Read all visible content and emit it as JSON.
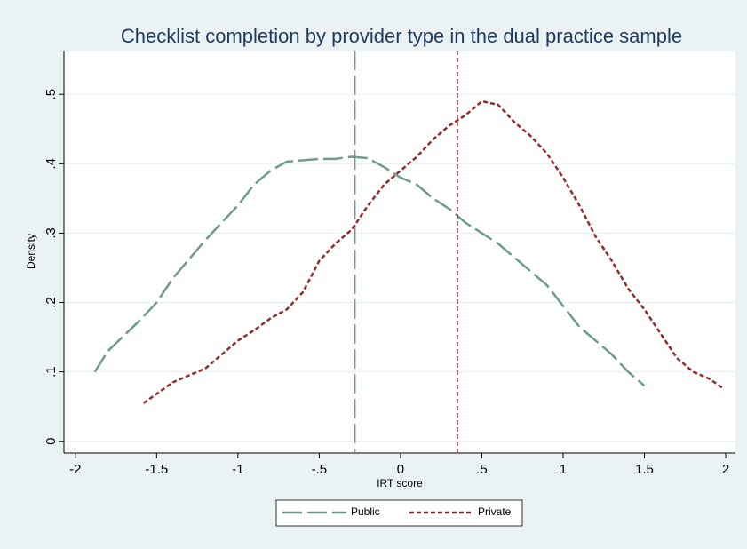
{
  "chart_data": {
    "type": "line",
    "title": "Checklist completion by provider type in the dual practice sample",
    "x_label": "IRT score",
    "y_label": "Density",
    "xlim": [
      -2.07,
      2.06
    ],
    "ylim": [
      -0.017,
      0.563
    ],
    "xticks": [
      -2,
      -1.5,
      -1,
      {
        "value": -0.5,
        "label": "-.5"
      },
      0,
      {
        "value": 0.5,
        "label": ".5"
      },
      1,
      1.5,
      2
    ],
    "yticks": [
      0,
      {
        "value": 0.1,
        "label": ".1"
      },
      {
        "value": 0.2,
        "label": ".2"
      },
      {
        "value": 0.3,
        "label": ".3"
      },
      {
        "value": 0.4,
        "label": ".4"
      },
      {
        "value": 0.5,
        "label": ".5"
      }
    ],
    "grid": true,
    "legend": "bottom",
    "series": [
      {
        "name": "Public",
        "color": "#6f9c90",
        "line_style": "long-dash",
        "mean": -0.28,
        "x": [
          -1.88,
          -1.8,
          -1.6,
          -1.5,
          -1.4,
          -1.2,
          -1.0,
          -0.9,
          -0.8,
          -0.7,
          -0.5,
          -0.4,
          -0.3,
          -0.2,
          -0.1,
          0,
          0.1,
          0.2,
          0.3,
          0.4,
          0.5,
          0.6,
          0.7,
          0.8,
          0.9,
          1.0,
          1.1,
          1.2,
          1.3,
          1.4,
          1.5
        ],
        "values": [
          0.1,
          0.13,
          0.175,
          0.2,
          0.235,
          0.29,
          0.34,
          0.37,
          0.39,
          0.403,
          0.407,
          0.407,
          0.41,
          0.408,
          0.395,
          0.38,
          0.37,
          0.35,
          0.335,
          0.315,
          0.3,
          0.285,
          0.265,
          0.245,
          0.225,
          0.195,
          0.165,
          0.145,
          0.125,
          0.1,
          0.08
        ]
      },
      {
        "name": "Private",
        "color": "#962a2a",
        "line_style": "short-dash",
        "mean": 0.35,
        "x": [
          -1.58,
          -1.4,
          -1.2,
          -1.0,
          -0.9,
          -0.8,
          -0.7,
          -0.6,
          -0.5,
          -0.4,
          -0.3,
          -0.2,
          -0.1,
          0,
          0.1,
          0.2,
          0.3,
          0.4,
          0.5,
          0.6,
          0.7,
          0.8,
          0.9,
          1.0,
          1.1,
          1.2,
          1.3,
          1.4,
          1.5,
          1.6,
          1.7,
          1.8,
          1.9,
          1.98
        ],
        "values": [
          0.055,
          0.085,
          0.105,
          0.145,
          0.16,
          0.177,
          0.19,
          0.215,
          0.26,
          0.285,
          0.305,
          0.34,
          0.37,
          0.39,
          0.41,
          0.435,
          0.455,
          0.47,
          0.49,
          0.485,
          0.46,
          0.44,
          0.415,
          0.38,
          0.34,
          0.295,
          0.26,
          0.22,
          0.19,
          0.155,
          0.12,
          0.1,
          0.09,
          0.077
        ]
      }
    ]
  }
}
